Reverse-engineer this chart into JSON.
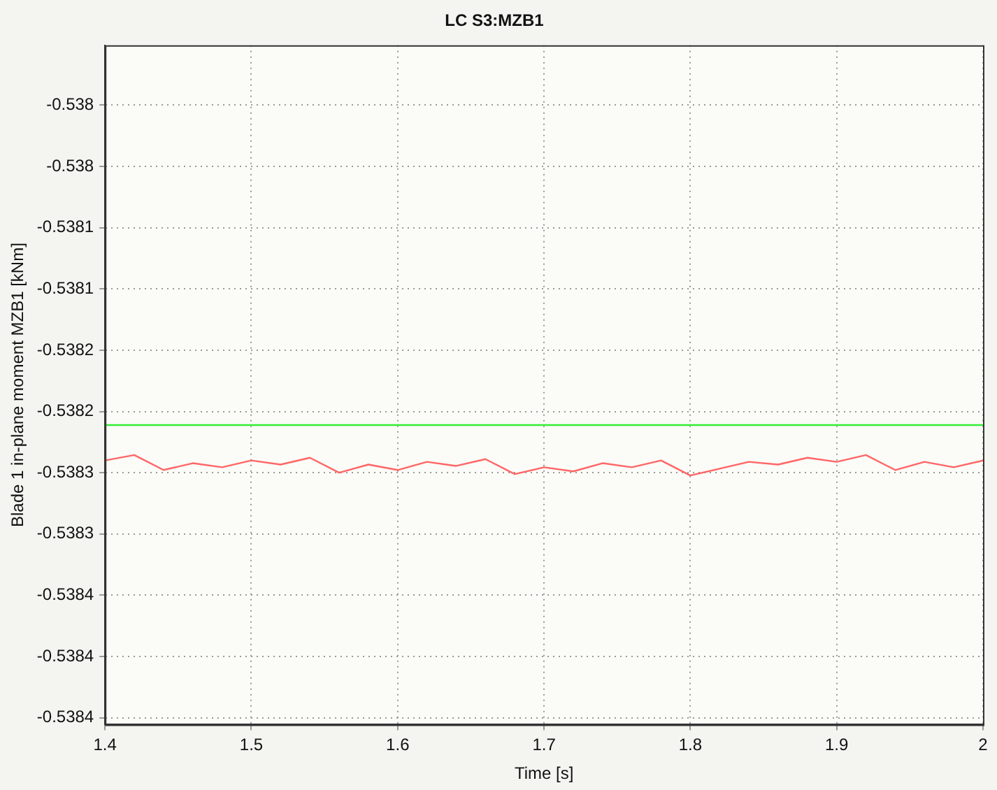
{
  "chart_data": {
    "type": "line",
    "title": "LC S3:MZB1",
    "xlabel": "Time [s]",
    "ylabel": "Blade 1 in-plane moment MZB1 [kNm]",
    "xlim": [
      1.4,
      2.0
    ],
    "xticks": [
      1.4,
      1.5,
      1.6,
      1.7,
      1.8,
      1.9,
      2
    ],
    "ylim": [
      -0.53845,
      -0.537951
    ],
    "yticks": [
      {
        "value": -0.537995,
        "label": "-0.538"
      },
      {
        "value": -0.53804,
        "label": "-0.538"
      },
      {
        "value": -0.538085,
        "label": "-0.5381"
      },
      {
        "value": -0.53813,
        "label": "-0.5381"
      },
      {
        "value": -0.538175,
        "label": "-0.5382"
      },
      {
        "value": -0.53822,
        "label": "-0.5382"
      },
      {
        "value": -0.538265,
        "label": "-0.5383"
      },
      {
        "value": -0.53831,
        "label": "-0.5383"
      },
      {
        "value": -0.538355,
        "label": "-0.5384"
      },
      {
        "value": -0.5384,
        "label": "-0.5384"
      },
      {
        "value": -0.538445,
        "label": "-0.5384"
      }
    ],
    "grid": true,
    "legend": false,
    "marker": "none",
    "line_style": "solid",
    "series": [
      {
        "color": "#33ee33",
        "x": [
          1.4,
          2.0
        ],
        "values": [
          -0.53823,
          -0.53823
        ]
      },
      {
        "color": "#ff6666",
        "x": [
          1.4,
          1.42,
          1.44,
          1.46,
          1.48,
          1.5,
          1.52,
          1.54,
          1.56,
          1.58,
          1.6,
          1.62,
          1.64,
          1.66,
          1.68,
          1.7,
          1.72,
          1.74,
          1.76,
          1.78,
          1.8,
          1.82,
          1.84,
          1.86,
          1.88,
          1.9,
          1.92,
          1.94,
          1.96,
          1.98,
          2.0
        ],
        "values": [
          -0.538256,
          -0.538252,
          -0.538263,
          -0.538258,
          -0.538261,
          -0.538256,
          -0.538259,
          -0.538254,
          -0.538265,
          -0.538259,
          -0.538263,
          -0.538257,
          -0.53826,
          -0.538255,
          -0.538266,
          -0.538261,
          -0.538264,
          -0.538258,
          -0.538261,
          -0.538256,
          -0.538267,
          -0.538262,
          -0.538257,
          -0.538259,
          -0.538254,
          -0.538257,
          -0.538252,
          -0.538263,
          -0.538257,
          -0.538261,
          -0.538256
        ]
      }
    ]
  }
}
